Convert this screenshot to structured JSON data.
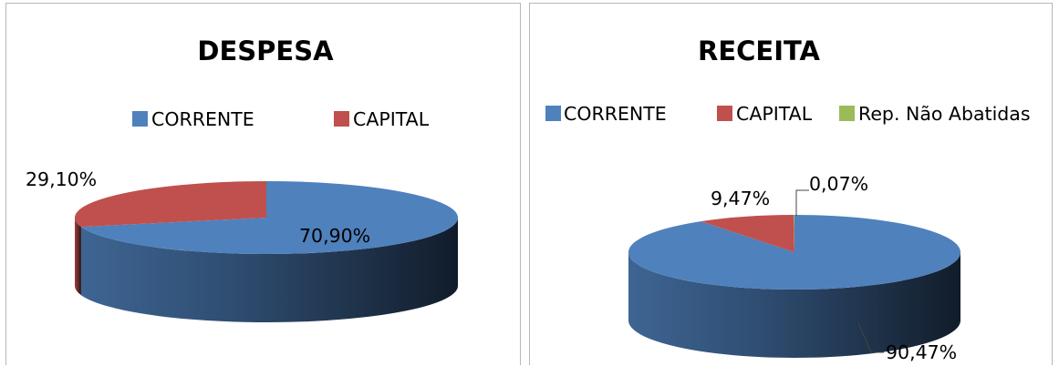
{
  "chart_data": [
    {
      "type": "pie",
      "title": "DESPESA",
      "categories": [
        "CORRENTE",
        "CAPITAL"
      ],
      "values": [
        70.9,
        29.1
      ],
      "data_labels": [
        "70,90%",
        "29,10%"
      ],
      "colors": [
        "#4f81bd",
        "#c0504d"
      ],
      "legend": "top"
    },
    {
      "type": "pie",
      "title": "RECEITA",
      "categories": [
        "CORRENTE",
        "CAPITAL",
        "Rep. Não Abatidas"
      ],
      "values": [
        90.47,
        9.47,
        0.07
      ],
      "data_labels": [
        "90,47%",
        "9,47%",
        "0,07%"
      ],
      "colors": [
        "#4f81bd",
        "#c0504d",
        "#9bbb59"
      ],
      "legend": "top"
    }
  ]
}
